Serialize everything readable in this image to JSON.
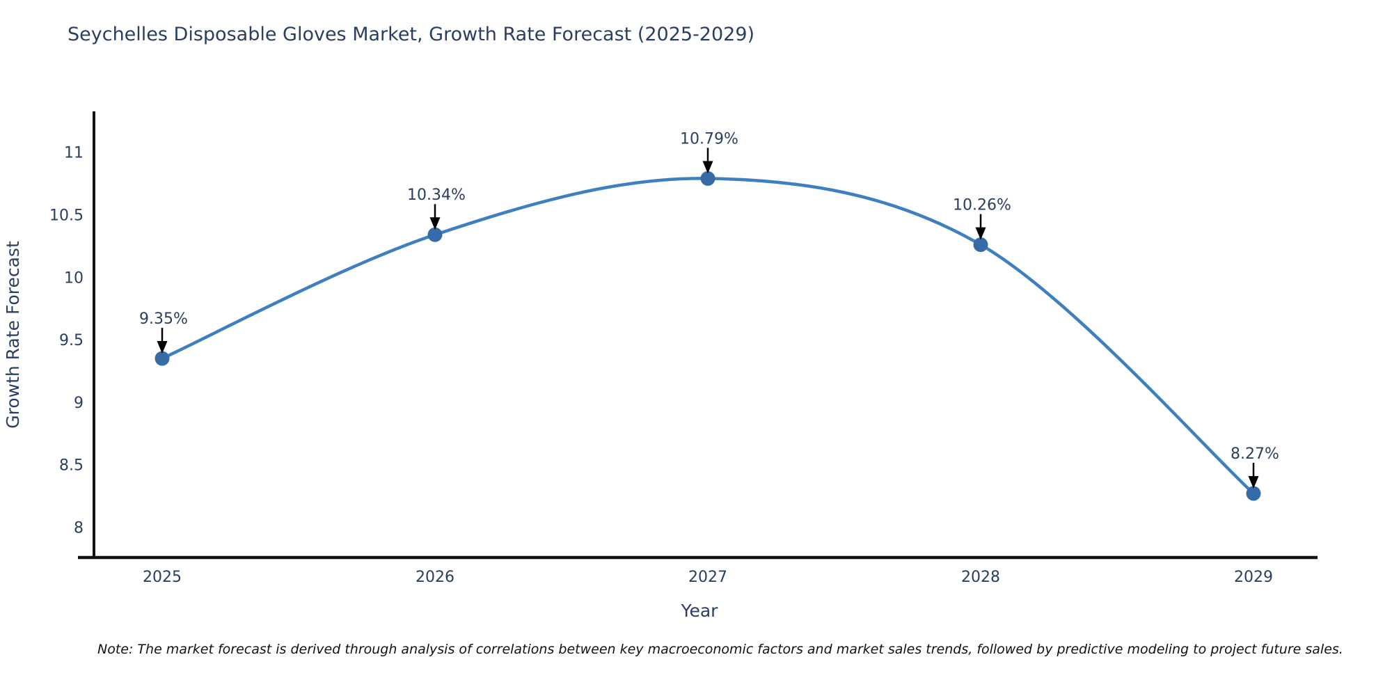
{
  "page": {
    "note": "Note: The market forecast is derived through analysis of correlations between key macroeconomic factors and market sales trends, followed by predictive modeling to project future sales."
  },
  "chart_data": {
    "type": "line",
    "title": "Seychelles Disposable Gloves Market, Growth Rate Forecast (2025-2029)",
    "xlabel": "Year",
    "ylabel": "Growth Rate Forecast",
    "x": [
      2025,
      2026,
      2027,
      2028,
      2029
    ],
    "series": [
      {
        "name": "Growth Rate Forecast",
        "values": [
          9.35,
          10.34,
          10.79,
          10.26,
          8.27
        ]
      }
    ],
    "point_labels": [
      "9.35%",
      "10.34%",
      "10.79%",
      "10.26%",
      "8.27%"
    ],
    "line_shape": "spline",
    "grid": false,
    "legend": "none",
    "ylim": [
      7.76,
      11.33
    ],
    "yticks": [
      8,
      8.5,
      9,
      9.5,
      10,
      10.5,
      11
    ],
    "colors": {
      "line": "#3e80bd",
      "marker": "#376ba6",
      "axis": "#111111",
      "text": "#2a3f5f",
      "annotation_text": "#2a3f5f",
      "annotation_arrow": "#000000",
      "background": "#ffffff"
    }
  }
}
